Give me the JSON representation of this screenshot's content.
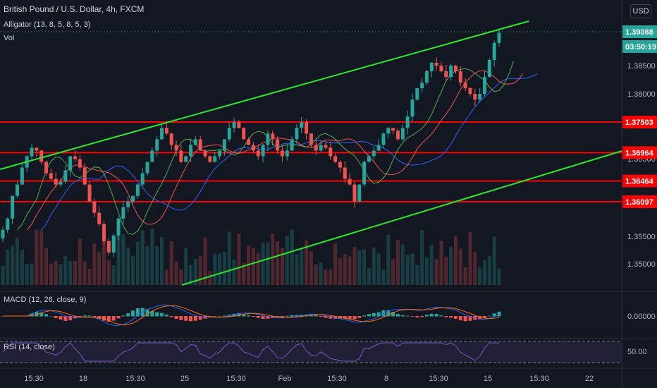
{
  "header": {
    "symbol": "British Pound / U.S. Dollar, 4h, FXCM",
    "indicator_alligator": "Alligator (13, 8, 5, 8, 5, 3)",
    "indicator_vol": "Vol",
    "currency_button": "USD"
  },
  "price_axis": {
    "ticks": [
      "1.38500",
      "1.38000",
      "1.36500",
      "1.35500",
      "1.35000"
    ],
    "current_price": "1.39088",
    "countdown": "03:50:19",
    "current_price_color": "#26a69a",
    "level_labels": [
      "1.37503",
      "1.36964",
      "1.36464",
      "1.36097"
    ],
    "level_color": "#ff0000"
  },
  "time_axis": {
    "labels": [
      "15:30",
      "18",
      "15:30",
      "25",
      "15:30",
      "Feb",
      "15:30",
      "8",
      "15:30",
      "15",
      "15:30",
      "22"
    ]
  },
  "macd": {
    "label": "MACD (12, 26, close, 9)",
    "tick": "0.00000"
  },
  "rsi": {
    "label": "RSI (14, close)",
    "tick": "50.00"
  },
  "colors": {
    "background": "#131722",
    "up": "#26a69a",
    "down": "#ef5350",
    "trendline": "#2ee62e",
    "horizontal_level": "#ff0000",
    "alligator_jaw": "#2962ff",
    "alligator_teeth": "#ef5350",
    "alligator_lips": "#4caf50",
    "macd_line": "#2962ff",
    "signal_line": "#ff6d00",
    "rsi_line": "#7e57c2"
  },
  "chart_data": {
    "type": "candlestick",
    "symbol": "GBPUSD",
    "timeframe": "4h",
    "horizontal_levels": [
      1.37503,
      1.36964,
      1.36464,
      1.36097
    ],
    "last_price": 1.39088,
    "closes": [
      1.356,
      1.358,
      1.362,
      1.364,
      1.367,
      1.369,
      1.3705,
      1.37,
      1.368,
      1.366,
      1.365,
      1.364,
      1.3645,
      1.3665,
      1.369,
      1.3685,
      1.367,
      1.364,
      1.361,
      1.359,
      1.357,
      1.354,
      1.352,
      1.355,
      1.358,
      1.36,
      1.361,
      1.362,
      1.364,
      1.366,
      1.368,
      1.37,
      1.372,
      1.374,
      1.373,
      1.371,
      1.37,
      1.368,
      1.369,
      1.371,
      1.372,
      1.37,
      1.369,
      1.368,
      1.369,
      1.37,
      1.372,
      1.374,
      1.375,
      1.374,
      1.372,
      1.371,
      1.37,
      1.369,
      1.371,
      1.373,
      1.372,
      1.37,
      1.369,
      1.37,
      1.372,
      1.374,
      1.375,
      1.373,
      1.371,
      1.37,
      1.371,
      1.3705,
      1.369,
      1.368,
      1.367,
      1.365,
      1.364,
      1.361,
      1.364,
      1.368,
      1.369,
      1.37,
      1.371,
      1.373,
      1.374,
      1.3735,
      1.372,
      1.374,
      1.376,
      1.379,
      1.381,
      1.382,
      1.384,
      1.3855,
      1.385,
      1.384,
      1.383,
      1.385,
      1.384,
      1.382,
      1.381,
      1.38,
      1.379,
      1.38,
      1.383,
      1.386,
      1.389,
      1.3908
    ]
  }
}
